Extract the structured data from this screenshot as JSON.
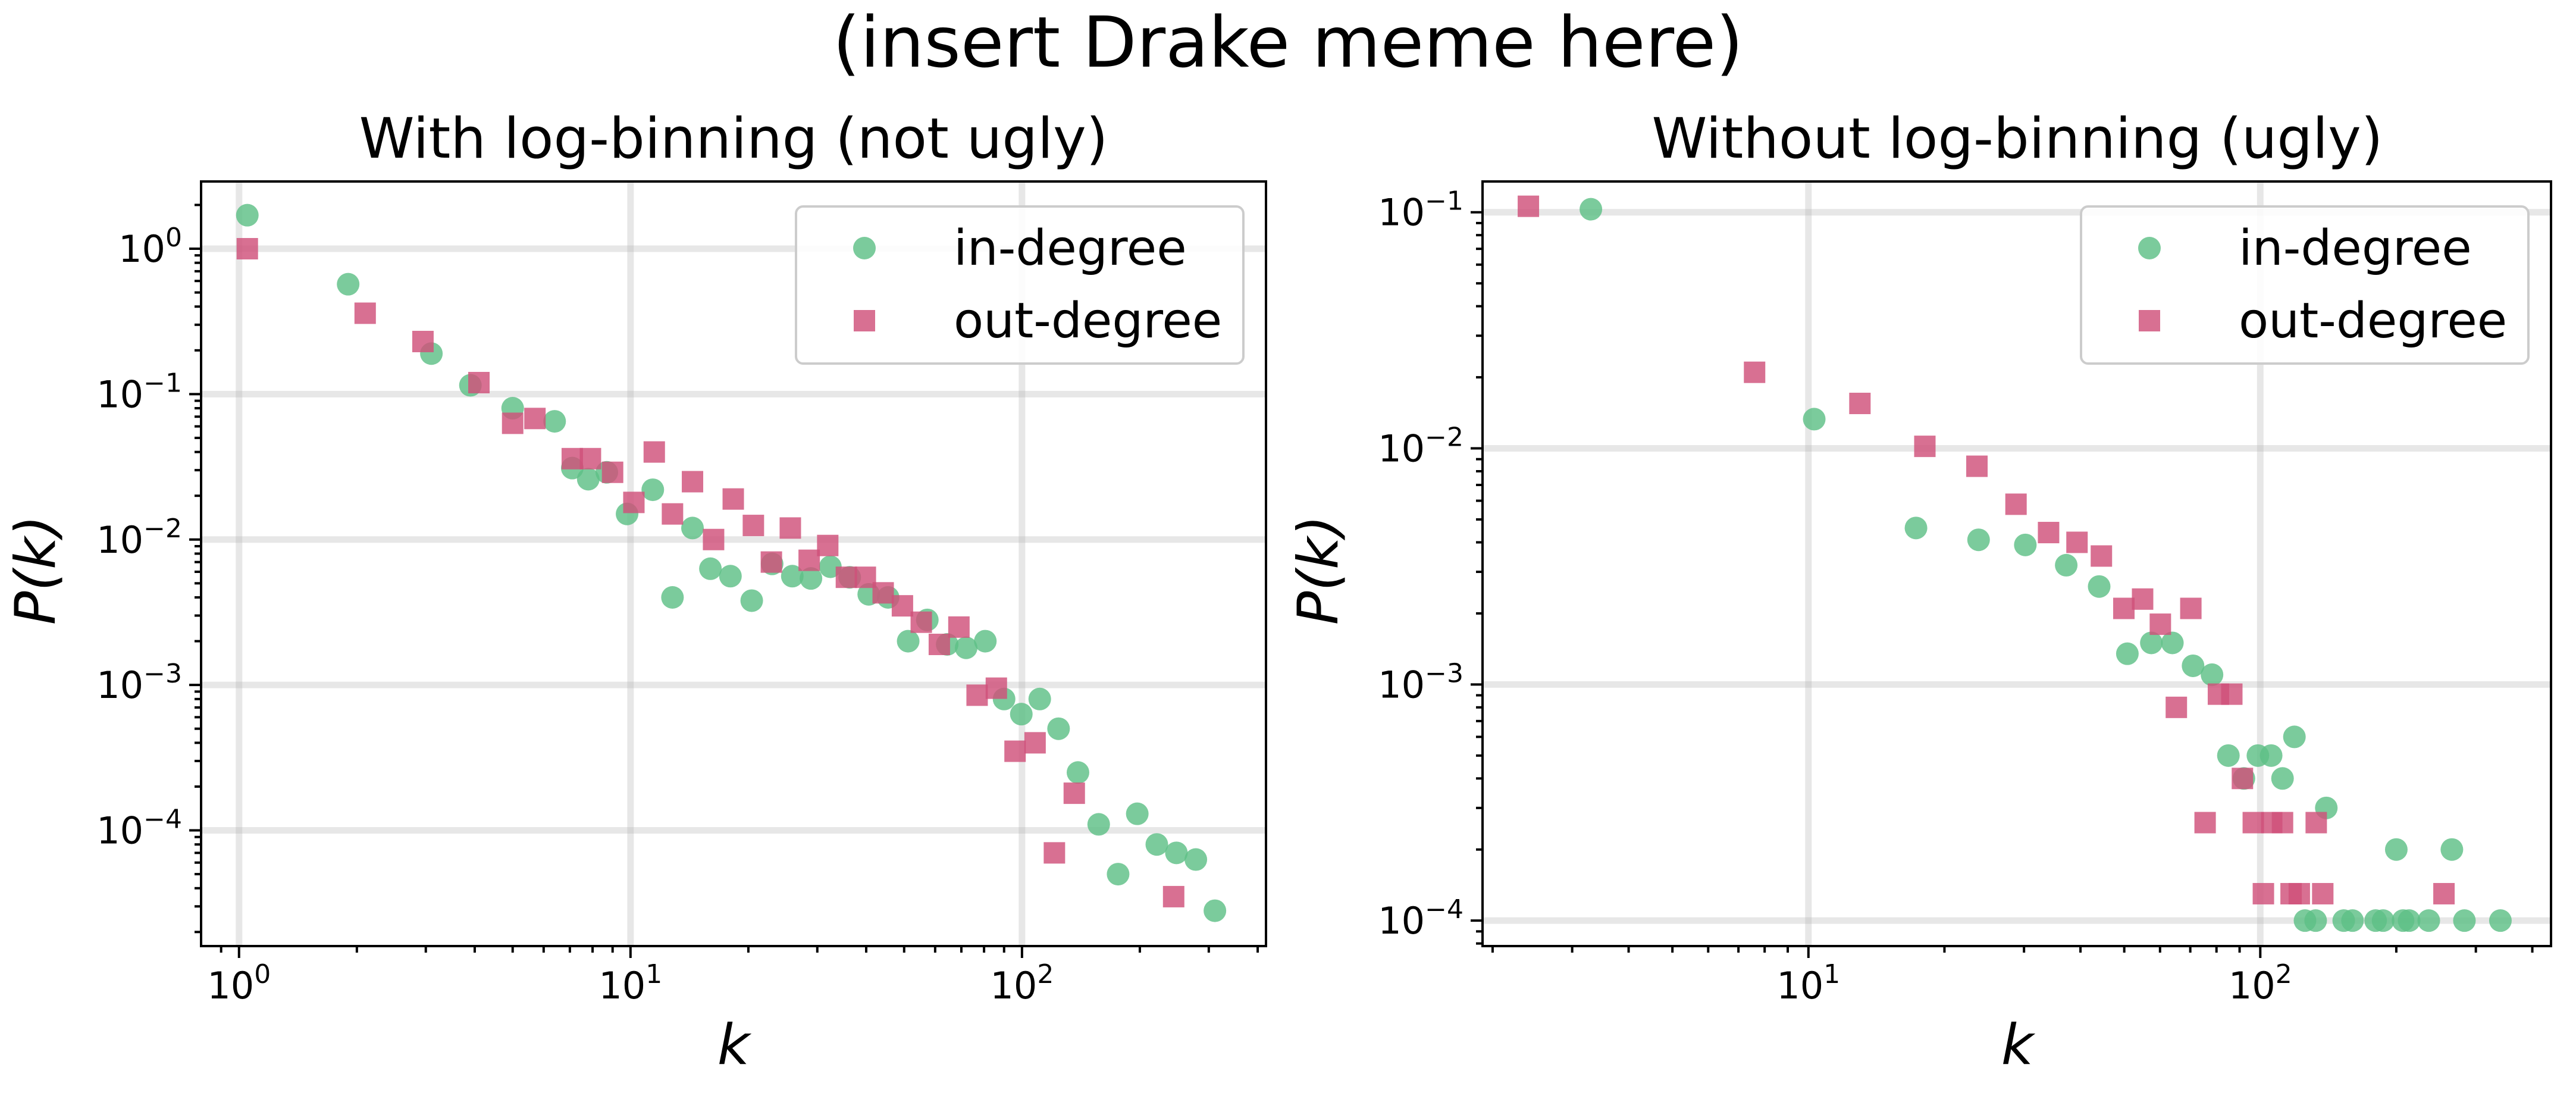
{
  "figure": {
    "suptitle": "(insert Drake meme here)",
    "colors": {
      "in": "#5ebf86",
      "out": "#d0507a"
    }
  },
  "chart_data": [
    {
      "type": "scatter",
      "title": "With log-binning (not ugly)",
      "xlabel": "k",
      "ylabel": "P(k)",
      "xscale": "log",
      "yscale": "log",
      "xlim": [
        0.8,
        420
      ],
      "ylim": [
        1.6e-05,
        2.9
      ],
      "xticks": [
        1,
        10,
        100
      ],
      "xtick_labels": [
        {
          "base": "10",
          "exp": "0"
        },
        {
          "base": "10",
          "exp": "1"
        },
        {
          "base": "10",
          "exp": "2"
        }
      ],
      "yticks": [
        1,
        0.1,
        0.01,
        0.001,
        0.0001
      ],
      "ytick_labels": [
        {
          "base": "10",
          "exp": "0"
        },
        {
          "base": "10",
          "exp": "−1"
        },
        {
          "base": "10",
          "exp": "−2"
        },
        {
          "base": "10",
          "exp": "−3"
        },
        {
          "base": "10",
          "exp": "−4"
        }
      ],
      "grid": true,
      "legend_position": "upper right",
      "series": [
        {
          "name": "in-degree",
          "marker": "circle",
          "color": "#5ebf86",
          "points": [
            [
              1.05,
              1.7
            ],
            [
              1.9,
              0.57
            ],
            [
              3.1,
              0.19
            ],
            [
              3.9,
              0.115
            ],
            [
              5.0,
              0.08
            ],
            [
              6.4,
              0.065
            ],
            [
              7.1,
              0.031
            ],
            [
              7.8,
              0.026
            ],
            [
              8.7,
              0.029
            ],
            [
              9.8,
              0.015
            ],
            [
              11.4,
              0.022
            ],
            [
              12.8,
              0.004
            ],
            [
              14.4,
              0.012
            ],
            [
              16.0,
              0.0063
            ],
            [
              18.0,
              0.0056
            ],
            [
              20.4,
              0.0038
            ],
            [
              23.0,
              0.0068
            ],
            [
              25.9,
              0.0056
            ],
            [
              28.9,
              0.0054
            ],
            [
              32.4,
              0.0065
            ],
            [
              36.3,
              0.0055
            ],
            [
              40.6,
              0.0042
            ],
            [
              45.5,
              0.004
            ],
            [
              51.2,
              0.002
            ],
            [
              57.3,
              0.0028
            ],
            [
              64.4,
              0.0019
            ],
            [
              72.0,
              0.0018
            ],
            [
              80.6,
              0.002
            ],
            [
              90.0,
              0.0008
            ],
            [
              99.6,
              0.00063
            ],
            [
              111.0,
              0.0008
            ],
            [
              124.0,
              0.0005
            ],
            [
              139.0,
              0.00025
            ],
            [
              157.0,
              0.00011
            ],
            [
              176.0,
              5e-05
            ],
            [
              197.0,
              0.00013
            ],
            [
              221.0,
              8e-05
            ],
            [
              248.0,
              7e-05
            ],
            [
              278.0,
              6.3e-05
            ],
            [
              311.0,
              2.8e-05
            ]
          ]
        },
        {
          "name": "out-degree",
          "marker": "square",
          "color": "#d0507a",
          "points": [
            [
              1.05,
              1.0
            ],
            [
              2.1,
              0.36
            ],
            [
              2.95,
              0.23
            ],
            [
              4.1,
              0.12
            ],
            [
              5.0,
              0.063
            ],
            [
              5.7,
              0.068
            ],
            [
              7.1,
              0.036
            ],
            [
              7.9,
              0.036
            ],
            [
              9.0,
              0.029
            ],
            [
              10.2,
              0.018
            ],
            [
              11.5,
              0.04
            ],
            [
              12.8,
              0.015
            ],
            [
              14.4,
              0.025
            ],
            [
              16.3,
              0.01
            ],
            [
              18.3,
              0.019
            ],
            [
              20.6,
              0.0125
            ],
            [
              22.9,
              0.007
            ],
            [
              25.6,
              0.012
            ],
            [
              28.6,
              0.0072
            ],
            [
              31.9,
              0.0091
            ],
            [
              35.6,
              0.0055
            ],
            [
              39.8,
              0.0055
            ],
            [
              44.2,
              0.0043
            ],
            [
              49.5,
              0.0035
            ],
            [
              55.3,
              0.0027
            ],
            [
              61.5,
              0.0019
            ],
            [
              69.0,
              0.0025
            ],
            [
              76.8,
              0.00085
            ],
            [
              86.0,
              0.00095
            ],
            [
              96.0,
              0.00035
            ],
            [
              108.0,
              0.0004
            ],
            [
              121.0,
              7e-05
            ],
            [
              136.0,
              0.00018
            ],
            [
              244.0,
              3.5e-05
            ]
          ]
        }
      ]
    },
    {
      "type": "scatter",
      "title": "Without log-binning (ugly)",
      "xlabel": "k",
      "ylabel": "P(k)",
      "xscale": "log",
      "yscale": "log",
      "xlim": [
        1.9,
        440
      ],
      "ylim": [
        7.8e-05,
        0.135
      ],
      "xticks": [
        10,
        100
      ],
      "xtick_labels": [
        {
          "base": "10",
          "exp": "1"
        },
        {
          "base": "10",
          "exp": "2"
        }
      ],
      "yticks": [
        0.1,
        0.01,
        0.001,
        0.0001
      ],
      "ytick_labels": [
        {
          "base": "10",
          "exp": "−1"
        },
        {
          "base": "10",
          "exp": "−2"
        },
        {
          "base": "10",
          "exp": "−3"
        },
        {
          "base": "10",
          "exp": "−4"
        }
      ],
      "grid": true,
      "legend_position": "upper right",
      "series": [
        {
          "name": "in-degree",
          "marker": "circle",
          "color": "#5ebf86",
          "points": [
            [
              3.3,
              0.103
            ],
            [
              10.3,
              0.0133
            ],
            [
              17.3,
              0.0046
            ],
            [
              23.8,
              0.0041
            ],
            [
              30.2,
              0.0039
            ],
            [
              37.2,
              0.0032
            ],
            [
              44.0,
              0.0026
            ],
            [
              50.8,
              0.00135
            ],
            [
              57.4,
              0.0015
            ],
            [
              63.9,
              0.0015
            ],
            [
              71.0,
              0.0012
            ],
            [
              78.2,
              0.0011
            ],
            [
              85.0,
              0.0005
            ],
            [
              92.0,
              0.0004
            ],
            [
              98.8,
              0.0005
            ],
            [
              105.7,
              0.0005
            ],
            [
              112.0,
              0.0004
            ],
            [
              119.0,
              0.0006
            ],
            [
              125.6,
              0.0001
            ],
            [
              132.6,
              0.0001
            ],
            [
              140.0,
              0.0003
            ],
            [
              153.0,
              0.0001
            ],
            [
              160.0,
              0.0001
            ],
            [
              180.0,
              0.0001
            ],
            [
              187.0,
              0.0001
            ],
            [
              200.0,
              0.0002
            ],
            [
              207.0,
              0.0001
            ],
            [
              213.5,
              0.0001
            ],
            [
              236.0,
              0.0001
            ],
            [
              265.5,
              0.0002
            ],
            [
              283.0,
              0.0001
            ],
            [
              340.0,
              0.0001
            ]
          ]
        },
        {
          "name": "out-degree",
          "marker": "square",
          "color": "#d0507a",
          "points": [
            [
              2.4,
              0.106
            ],
            [
              7.6,
              0.021
            ],
            [
              13.0,
              0.0155
            ],
            [
              18.1,
              0.0102
            ],
            [
              23.6,
              0.0084
            ],
            [
              28.8,
              0.0058
            ],
            [
              34.0,
              0.0044
            ],
            [
              39.3,
              0.004
            ],
            [
              44.5,
              0.0035
            ],
            [
              49.9,
              0.0021
            ],
            [
              54.9,
              0.0023
            ],
            [
              60.1,
              0.0018
            ],
            [
              65.2,
              0.0008
            ],
            [
              70.2,
              0.0021
            ],
            [
              75.5,
              0.00026
            ],
            [
              80.8,
              0.00091
            ],
            [
              86.5,
              0.00091
            ],
            [
              91.3,
              0.0004
            ],
            [
              96.5,
              0.00026
            ],
            [
              101.6,
              0.00013
            ],
            [
              106.0,
              0.00026
            ],
            [
              112.0,
              0.00026
            ],
            [
              117.0,
              0.00013
            ],
            [
              122.0,
              0.00013
            ],
            [
              133.0,
              0.00026
            ],
            [
              137.5,
              0.00013
            ],
            [
              255.0,
              0.00013
            ]
          ]
        }
      ]
    }
  ]
}
